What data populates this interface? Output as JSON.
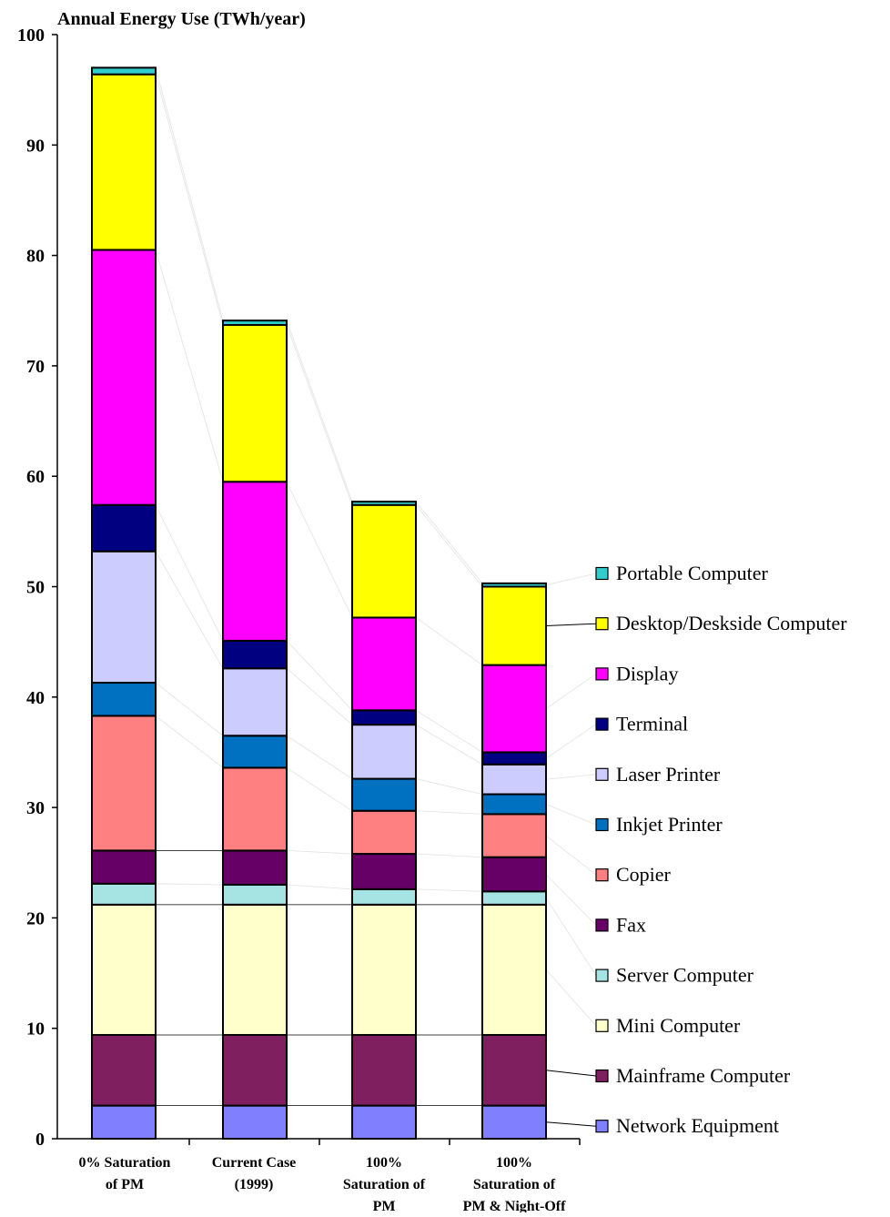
{
  "chart_data": {
    "type": "bar",
    "stacked": true,
    "ylabel": "Annual Energy Use (TWh/year)",
    "ylim": [
      0,
      100
    ],
    "yticks": [
      0,
      10,
      20,
      30,
      40,
      50,
      60,
      70,
      80,
      90,
      100
    ],
    "grid": false,
    "legend_position": "right",
    "categories": [
      [
        "0% Saturation",
        "of PM"
      ],
      [
        "Current Case",
        "(1999)"
      ],
      [
        "100%",
        "Saturation of",
        "PM"
      ],
      [
        "100%",
        "Saturation of",
        "PM & Night-Off"
      ]
    ],
    "series": [
      {
        "name": "Network Equipment",
        "color": "#8080FF",
        "values": [
          3.0,
          3.0,
          3.0,
          3.0
        ]
      },
      {
        "name": "Mainframe Computer",
        "color": "#7F1F5F",
        "values": [
          6.4,
          6.4,
          6.4,
          6.4
        ]
      },
      {
        "name": "Mini Computer",
        "color": "#FFFFCC",
        "values": [
          11.8,
          11.8,
          11.8,
          11.8
        ]
      },
      {
        "name": "Server Computer",
        "color": "#A6E4E4",
        "values": [
          1.9,
          1.8,
          1.4,
          1.2
        ]
      },
      {
        "name": "Fax",
        "color": "#660066",
        "values": [
          3.0,
          3.1,
          3.2,
          3.1
        ]
      },
      {
        "name": "Copier",
        "color": "#FF8080",
        "values": [
          12.2,
          7.5,
          3.9,
          3.9
        ]
      },
      {
        "name": "Inkjet Printer",
        "color": "#0070C0",
        "values": [
          3.0,
          2.9,
          2.9,
          1.8
        ]
      },
      {
        "name": "Laser Printer",
        "color": "#CCCCFF",
        "values": [
          11.9,
          6.1,
          4.9,
          2.7
        ]
      },
      {
        "name": "Terminal",
        "color": "#000080",
        "values": [
          4.2,
          2.5,
          1.3,
          1.1
        ]
      },
      {
        "name": "Display",
        "color": "#FF00FF",
        "values": [
          23.1,
          14.4,
          8.4,
          7.9
        ]
      },
      {
        "name": "Desktop/Deskside Computer",
        "color": "#FFFF00",
        "values": [
          15.9,
          14.2,
          10.2,
          7.1
        ]
      },
      {
        "name": "Portable Computer",
        "color": "#33CCCC",
        "values": [
          0.6,
          0.4,
          0.3,
          0.3
        ]
      }
    ]
  }
}
